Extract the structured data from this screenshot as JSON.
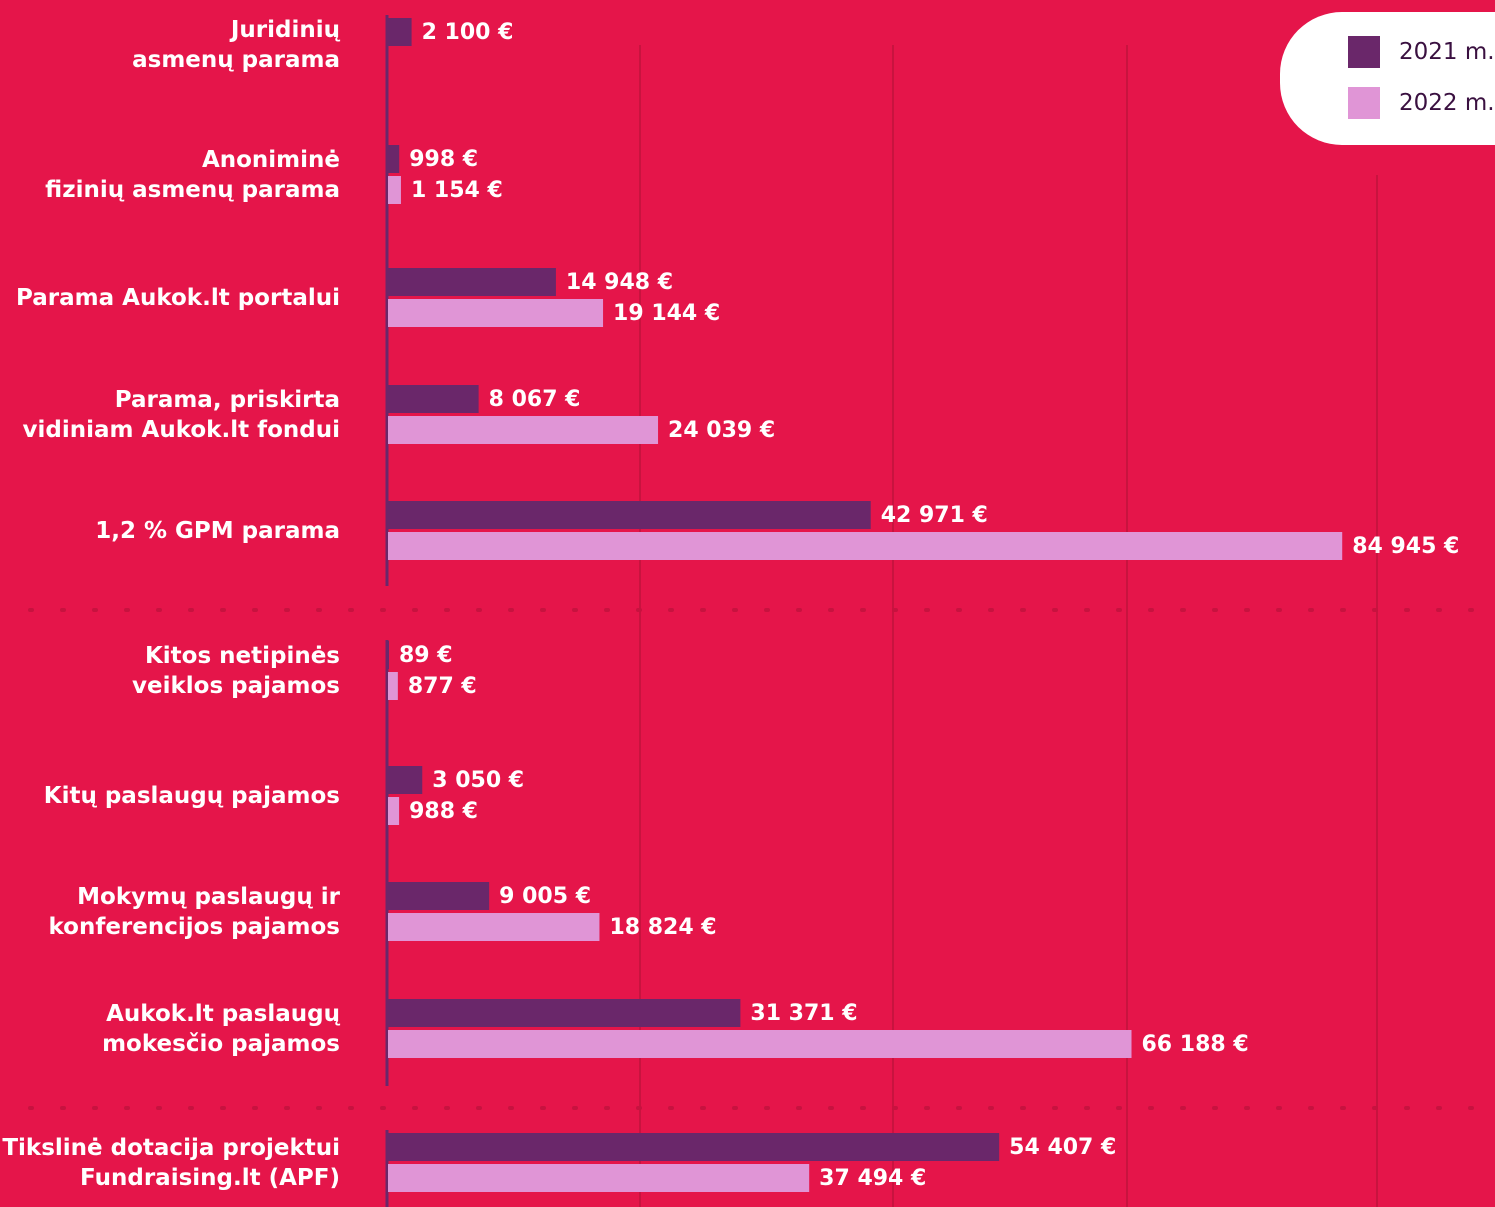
{
  "chart_data": {
    "type": "hbar",
    "categories": [
      "Juridinių\nasmenų parama",
      "Anoniminė\nfizinių asmenų parama",
      "Parama Aukok.lt portalui",
      "Parama, priskirta\nvidiniam Aukok.lt fondui",
      "1,2 % GPM parama",
      "Kitos netipinės\nveiklos pajamos",
      "Kitų paslaugų pajamos",
      "Mokymų paslaugų ir\nkonferencijos pajamos",
      "Aukok.lt paslaugų\nmokesčio pajamos",
      "Tikslinė dotacija projektui\nFundraising.lt (APF)"
    ],
    "series": [
      {
        "name": "2021 m.",
        "color": "#6a276a",
        "values": [
          2100,
          998,
          14948,
          8067,
          42971,
          89,
          3050,
          9005,
          31371,
          54407
        ],
        "value_labels": [
          "2 100 €",
          "998 €",
          "14 948 €",
          "8 067 €",
          "42 971 €",
          "89 €",
          "3 050 €",
          "9 005 €",
          "31 371 €",
          "54 407 €"
        ]
      },
      {
        "name": "2022 m.",
        "color": "#e095d6",
        "values": [
          null,
          1154,
          19144,
          24039,
          84945,
          877,
          988,
          18824,
          66188,
          37494
        ],
        "value_labels": [
          null,
          "1 154 €",
          "19 144 €",
          "24 039 €",
          "84 945 €",
          "877 €",
          "988 €",
          "18 824 €",
          "66 188 €",
          "37 494 €"
        ]
      }
    ],
    "xlim": [
      0,
      90000
    ],
    "legend": "top-right"
  }
}
